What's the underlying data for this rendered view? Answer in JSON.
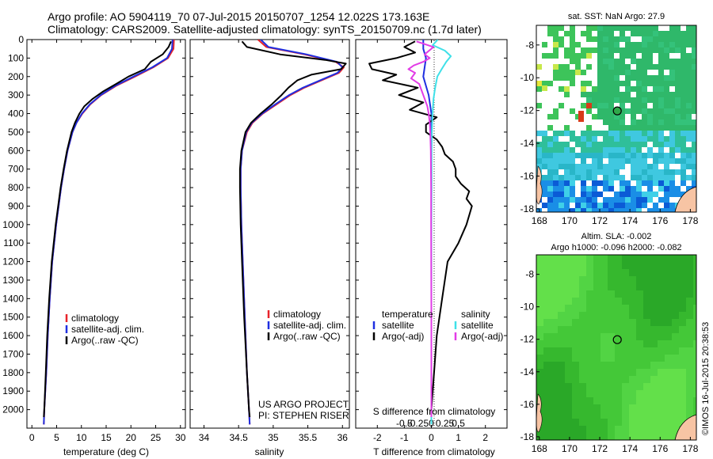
{
  "header": {
    "line1": "Argo profile: AO 5904119_70 07-Jul-2015 20150707_1254 12.022S 173.163E",
    "line2": "Climatology: CARS2009. Satellite-adjusted climatology: synTS_20150709.nc (1.7d later)"
  },
  "credit": "IMOS 16-Jul-2015 20:38:53",
  "project": {
    "line1": "US ARGO PROJECT",
    "line2": "PI: STEPHEN RISER"
  },
  "colors": {
    "climatology": "#e8232a",
    "satellite": "#1f2fe0",
    "argo": "#000000",
    "sat_salinity": "#3fe0e8",
    "argo_salinity": "#e23ce6"
  },
  "chart_data": [
    {
      "type": "line",
      "xlabel": "temperature (deg C)",
      "ylabel": "",
      "xlim": [
        -1,
        31
      ],
      "ylim": [
        2100,
        0
      ],
      "xticks": [
        0,
        5,
        10,
        15,
        20,
        25,
        30
      ],
      "yticks": [
        0,
        100,
        200,
        300,
        400,
        500,
        600,
        700,
        800,
        900,
        1000,
        1100,
        1200,
        1300,
        1400,
        1500,
        1600,
        1700,
        1800,
        1900,
        2000
      ],
      "legend": [
        "climatology",
        "satellite-adj. clim.",
        "Argo(..raw -QC)"
      ],
      "series": [
        {
          "name": "climatology",
          "y": [
            0,
            50,
            100,
            150,
            200,
            250,
            300,
            350,
            400,
            450,
            500,
            600,
            700,
            800,
            1000,
            1200,
            1400,
            1600,
            1800,
            2000,
            2080
          ],
          "x": [
            28.7,
            28.6,
            27.5,
            24.5,
            20.8,
            17,
            14,
            11.8,
            10.2,
            9.0,
            8.2,
            7.2,
            6.5,
            5.9,
            4.9,
            4.1,
            3.6,
            3.2,
            2.9,
            2.5,
            2.4
          ]
        },
        {
          "name": "satellite-adj. clim.",
          "y": [
            0,
            50,
            100,
            150,
            200,
            250,
            300,
            350,
            400,
            450,
            500,
            600,
            700,
            800,
            1000,
            1200,
            1400,
            1600,
            1800,
            2000,
            2080
          ],
          "x": [
            28.4,
            28.3,
            27.3,
            24.3,
            20.5,
            16.8,
            13.9,
            11.7,
            10.1,
            9.0,
            8.2,
            7.2,
            6.5,
            5.9,
            4.9,
            4.1,
            3.6,
            3.2,
            2.9,
            2.5,
            2.4
          ]
        },
        {
          "name": "Argo(..raw -QC)",
          "y": [
            10,
            40,
            80,
            120,
            160,
            200,
            240,
            280,
            320,
            360,
            400,
            450,
            500,
            600,
            700,
            800,
            1000,
            1200,
            1400,
            1600,
            1800,
            2000,
            2040
          ],
          "x": [
            28.1,
            27.6,
            26.4,
            24.0,
            22.8,
            19.5,
            17.0,
            14.4,
            12.3,
            10.6,
            9.6,
            8.7,
            8.0,
            7.1,
            6.4,
            5.8,
            4.8,
            4.0,
            3.5,
            3.1,
            2.8,
            2.5,
            2.4
          ]
        }
      ]
    },
    {
      "type": "line",
      "xlabel": "salinity",
      "ylabel": "",
      "xlim": [
        33.8,
        36.1
      ],
      "ylim": [
        2100,
        0
      ],
      "xticks": [
        34,
        34.5,
        35,
        35.5,
        36
      ],
      "yticks": [
        0,
        100,
        200,
        300,
        400,
        500,
        600,
        700,
        800,
        900,
        1000,
        1100,
        1200,
        1300,
        1400,
        1500,
        1600,
        1700,
        1800,
        1900,
        2000
      ],
      "legend": [
        "climatology",
        "satellite-adj. clim.",
        "Argo(..raw -QC)"
      ],
      "series": [
        {
          "name": "climatology",
          "y": [
            0,
            40,
            80,
            120,
            150,
            180,
            220,
            260,
            300,
            350,
            400,
            450,
            500,
            600,
            700,
            800,
            1000,
            1200,
            1500,
            1800,
            2000,
            2080
          ],
          "x": [
            34.78,
            34.9,
            35.45,
            35.9,
            36.02,
            35.95,
            35.7,
            35.45,
            35.25,
            35.05,
            34.85,
            34.7,
            34.62,
            34.55,
            34.53,
            34.53,
            34.54,
            34.56,
            34.59,
            34.62,
            34.65,
            34.66
          ]
        },
        {
          "name": "satellite-adj. clim.",
          "y": [
            0,
            40,
            80,
            120,
            150,
            180,
            220,
            260,
            300,
            350,
            400,
            450,
            500,
            600,
            700,
            800,
            1000,
            1200,
            1500,
            1800,
            2000,
            2080
          ],
          "x": [
            34.82,
            34.93,
            35.48,
            35.92,
            36.0,
            35.93,
            35.68,
            35.43,
            35.23,
            35.03,
            34.84,
            34.69,
            34.61,
            34.55,
            34.53,
            34.53,
            34.54,
            34.56,
            34.59,
            34.62,
            34.65,
            34.66
          ]
        },
        {
          "name": "Argo(..raw -QC)",
          "y": [
            10,
            40,
            80,
            110,
            130,
            160,
            190,
            220,
            260,
            300,
            350,
            400,
            450,
            500,
            600,
            700,
            800,
            1000,
            1200,
            1500,
            1800,
            2000,
            2040
          ],
          "x": [
            34.55,
            34.62,
            35.1,
            35.75,
            36.05,
            35.98,
            35.55,
            35.35,
            35.22,
            35.12,
            34.98,
            34.82,
            34.68,
            34.6,
            34.54,
            34.52,
            34.52,
            34.53,
            34.55,
            34.58,
            34.62,
            34.65,
            34.66
          ]
        }
      ]
    },
    {
      "type": "line",
      "xlabel": "T difference from climatology",
      "title_top": "S difference from climatology",
      "xlim": [
        -2.8,
        2.8
      ],
      "ylim": [
        2100,
        0
      ],
      "xticks": [
        -2,
        -1,
        0,
        1,
        2
      ],
      "xticks_top": [
        -0.5,
        -0.25,
        0,
        0.25,
        0.5
      ],
      "yticks": [
        0,
        100,
        200,
        300,
        400,
        500,
        600,
        700,
        800,
        900,
        1000,
        1100,
        1200,
        1300,
        1400,
        1500,
        1600,
        1700,
        1800,
        1900,
        2000
      ],
      "legend_temperature": {
        "heading": "temperature",
        "satellite": "satellite",
        "argo": "Argo(-adj)"
      },
      "legend_salinity": {
        "heading": "salinity",
        "satellite": "satellite",
        "argo": "Argo(-adj)"
      },
      "series": [
        {
          "name": "temperature satellite",
          "y": [
            0,
            50,
            100,
            200,
            300,
            400,
            500,
            600,
            700,
            800,
            900
          ],
          "x": [
            -0.3,
            -0.3,
            -0.2,
            -0.3,
            -0.1,
            0,
            0,
            0,
            0,
            0,
            0
          ]
        },
        {
          "name": "temperature Argo(-adj)",
          "y": [
            10,
            40,
            70,
            100,
            130,
            160,
            190,
            220,
            260,
            300,
            340,
            380,
            420,
            460,
            500,
            540,
            580,
            620,
            660,
            700,
            740,
            780,
            820,
            860,
            900,
            1000,
            1100,
            1200,
            1400,
            1600,
            1800,
            2000,
            2040
          ],
          "x": [
            -0.6,
            -1.0,
            -0.6,
            -1.3,
            -2.3,
            -2.2,
            -1.3,
            -1.8,
            -0.5,
            -1.2,
            -0.3,
            -0.8,
            0.2,
            -0.2,
            -0.2,
            0.2,
            0.4,
            0.5,
            0.8,
            0.9,
            0.9,
            1.1,
            1.4,
            1.3,
            1.5,
            1.3,
            1.0,
            0.6,
            0.4,
            0.2,
            0.1,
            0.0,
            0.0
          ]
        },
        {
          "name": "salinity satellite",
          "y": [
            0,
            30,
            60,
            90,
            120,
            160,
            200,
            260,
            320,
            400,
            500,
            600,
            800,
            1000,
            1500,
            2000,
            2080
          ],
          "x": [
            0.24,
            0.05,
            0.5,
            0.72,
            0.55,
            0.38,
            0.22,
            0.14,
            0.08,
            0.04,
            0.02,
            0.01,
            0.01,
            0,
            0,
            0,
            0
          ]
        },
        {
          "name": "salinity Argo(-adj)",
          "y": [
            10,
            40,
            80,
            100,
            120,
            140,
            160,
            180,
            210,
            240,
            280,
            320,
            360,
            400,
            450,
            500,
            600,
            800,
            1000,
            1500,
            2000,
            2040
          ],
          "x": [
            -0.55,
            0.08,
            -0.25,
            -0.06,
            -0.3,
            -0.65,
            -0.85,
            -0.6,
            -0.75,
            -0.45,
            -0.35,
            -0.25,
            -0.15,
            -0.1,
            -0.06,
            -0.04,
            -0.02,
            -0.01,
            -0.01,
            0,
            0,
            0
          ]
        }
      ]
    },
    {
      "type": "heatmap",
      "title": "sat. SST: NaN Argo: 27.9",
      "xticks": [
        168,
        170,
        172,
        174,
        176,
        178
      ],
      "yticks": [
        -8,
        -10,
        -12,
        -14,
        -16,
        -18
      ],
      "xlim": [
        167.8,
        178.4
      ],
      "ylim": [
        -18.2,
        -6.8
      ],
      "argo_marker": {
        "lon": 173.163,
        "lat": -12.022
      }
    },
    {
      "type": "heatmap",
      "title": "Altim. SLA: -0.002",
      "subtitle": "Argo h1000: -0.096 h2000: -0.082",
      "xticks": [
        168,
        170,
        172,
        174,
        176,
        178
      ],
      "yticks": [
        -8,
        -10,
        -12,
        -14,
        -16,
        -18
      ],
      "xlim": [
        167.8,
        178.4
      ],
      "ylim": [
        -18.2,
        -6.8
      ],
      "argo_marker": {
        "lon": 173.163,
        "lat": -12.022
      }
    }
  ]
}
